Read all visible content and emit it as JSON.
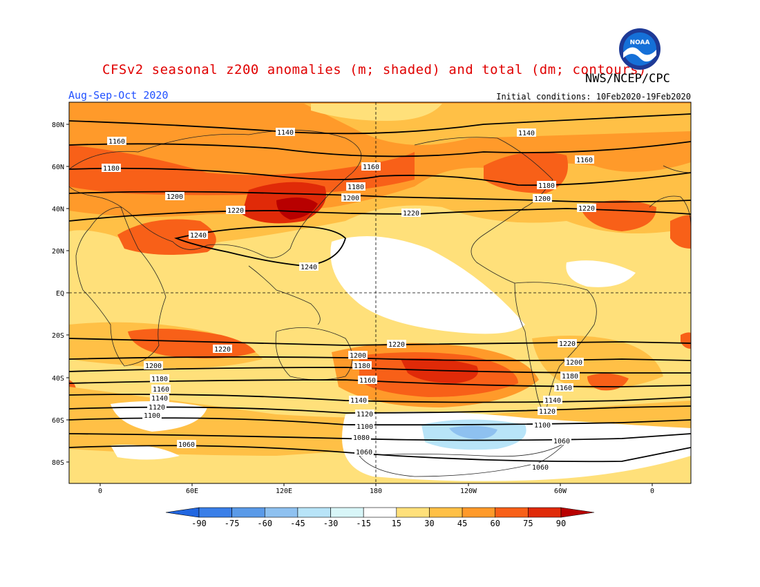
{
  "title": "CFSv2 seasonal z200 anomalies (m; shaded) and total (dm; contours)",
  "organization": "NWS/NCEP/CPC",
  "logo_text": "NOAA",
  "period": "Aug-Sep-Oct 2020",
  "initial_conditions": "Initial conditions: 10Feb2020-19Feb2020",
  "lat_labels": [
    "80N",
    "60N",
    "40N",
    "20N",
    "EQ",
    "20S",
    "40S",
    "60S",
    "80S"
  ],
  "lon_labels": [
    "0",
    "60E",
    "120E",
    "180",
    "120W",
    "60W",
    "0"
  ],
  "colorbar": {
    "ticks": [
      "-90",
      "-75",
      "-60",
      "-45",
      "-30",
      "-15",
      "15",
      "30",
      "45",
      "60",
      "75",
      "90"
    ],
    "colors": [
      "#2166e0",
      "#3a7fe8",
      "#5a9ae8",
      "#8ec1f0",
      "#b8e4f8",
      "#d8f6f8",
      "#ffffff",
      "#ffe07a",
      "#ffc046",
      "#ff9a2a",
      "#f86018",
      "#e02a08",
      "#b80000"
    ]
  },
  "contour_labels": [
    {
      "text": "1140"
    },
    {
      "text": "1160"
    },
    {
      "text": "1180"
    },
    {
      "text": "1200"
    },
    {
      "text": "1220"
    },
    {
      "text": "1240"
    },
    {
      "text": "1160"
    },
    {
      "text": "1180"
    },
    {
      "text": "1200"
    },
    {
      "text": "1220"
    },
    {
      "text": "1240"
    },
    {
      "text": "1140"
    },
    {
      "text": "1160"
    },
    {
      "text": "1180"
    },
    {
      "text": "1200"
    },
    {
      "text": "1220"
    },
    {
      "text": "1220"
    },
    {
      "text": "1200"
    },
    {
      "text": "1180"
    },
    {
      "text": "1160"
    },
    {
      "text": "1140"
    },
    {
      "text": "1120"
    },
    {
      "text": "1100"
    },
    {
      "text": "1060"
    },
    {
      "text": "1220"
    },
    {
      "text": "1200"
    },
    {
      "text": "1180"
    },
    {
      "text": "1160"
    },
    {
      "text": "1140"
    },
    {
      "text": "1120"
    },
    {
      "text": "1100"
    },
    {
      "text": "1080"
    },
    {
      "text": "1060"
    },
    {
      "text": "1220"
    },
    {
      "text": "1200"
    },
    {
      "text": "1180"
    },
    {
      "text": "1160"
    },
    {
      "text": "1140"
    },
    {
      "text": "1120"
    },
    {
      "text": "1100"
    },
    {
      "text": "1060"
    },
    {
      "text": "1060"
    }
  ]
}
